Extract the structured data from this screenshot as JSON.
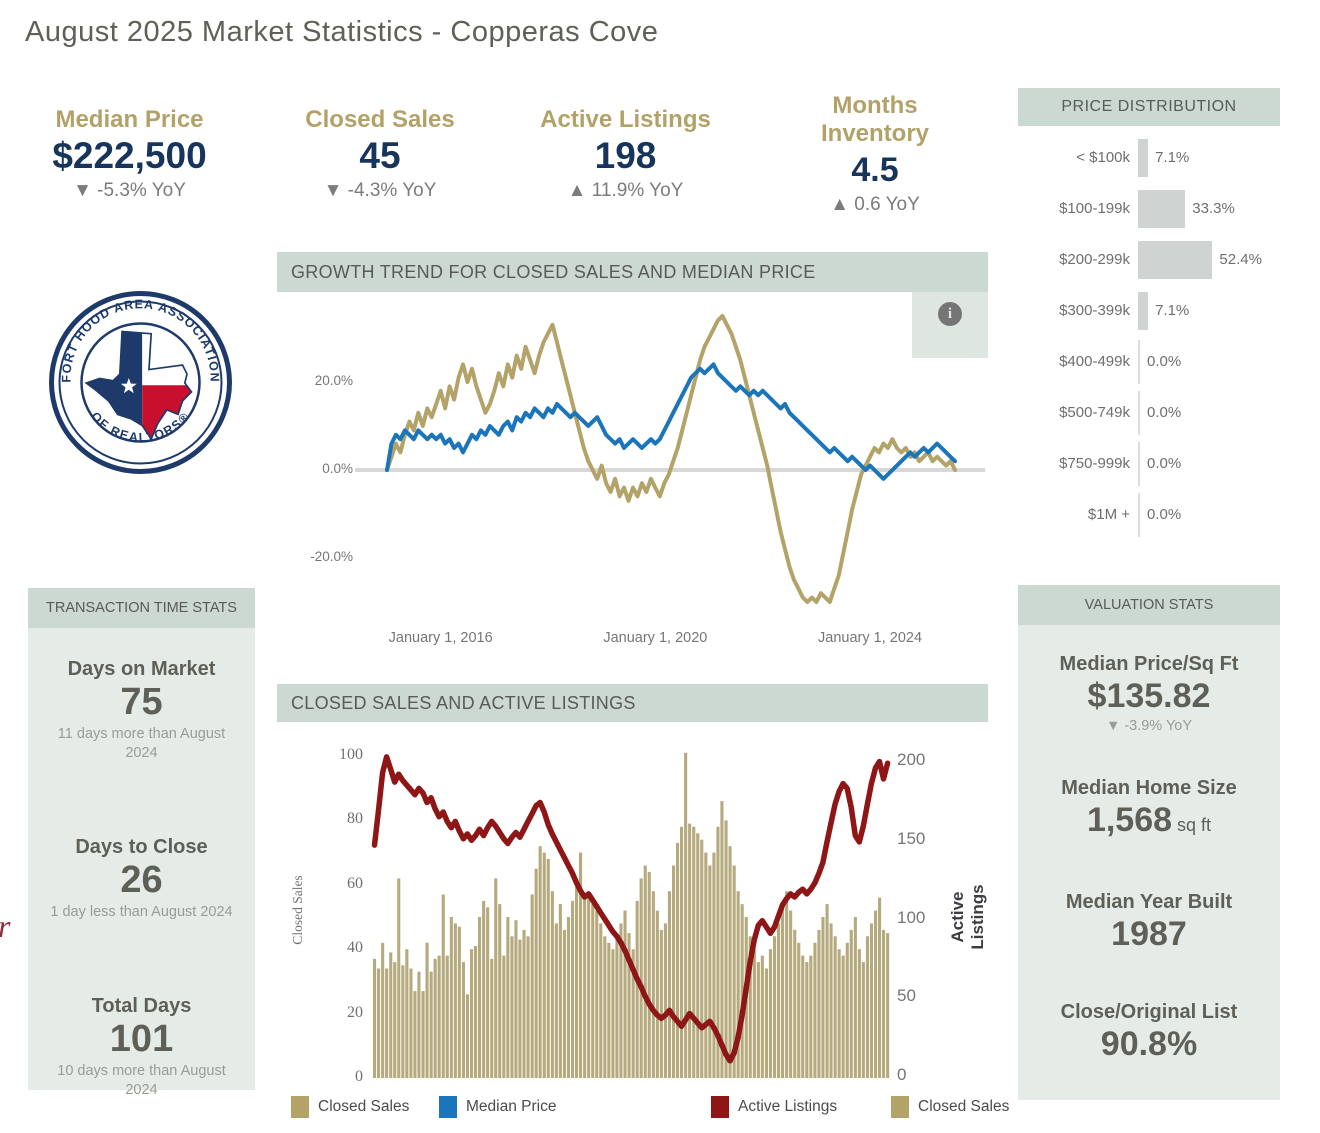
{
  "title": "August 2025 Market Statistics - Copperas Cove",
  "colors": {
    "gold": "#b2a269",
    "navy": "#17355c",
    "sage_header": "#ccd8d2",
    "panel": "#e5ece8",
    "tan_series": "#b3a369",
    "tan_bar": "#b5a97e",
    "blue_series": "#1a75bb",
    "red_series": "#8e1616",
    "gray_bar": "#cfd4d3",
    "zero_line": "#d8d8d8"
  },
  "kpis": [
    {
      "label": "Median Price",
      "value": "$222,500",
      "delta": "▼ -5.3% YoY"
    },
    {
      "label": "Closed Sales",
      "value": "45",
      "delta": "▼ -4.3% YoY"
    },
    {
      "label": "Active Listings",
      "value": "198",
      "delta": "▲ 11.9% YoY"
    },
    {
      "label": "Months Inventory",
      "value": "4.5",
      "delta": "▲ 0.6 YoY"
    }
  ],
  "price_distribution": {
    "header": "PRICE DISTRIBUTION",
    "rows": [
      {
        "label": "< $100k",
        "pct": "7.1%",
        "value": 7.1
      },
      {
        "label": "$100-199k",
        "pct": "33.3%",
        "value": 33.3
      },
      {
        "label": "$200-299k",
        "pct": "52.4%",
        "value": 52.4
      },
      {
        "label": "$300-399k",
        "pct": "7.1%",
        "value": 7.1
      },
      {
        "label": "$400-499k",
        "pct": "0.0%",
        "value": 0
      },
      {
        "label": "$500-749k",
        "pct": "0.0%",
        "value": 0
      },
      {
        "label": "$750-999k",
        "pct": "0.0%",
        "value": 0
      },
      {
        "label": "$1M +",
        "pct": "0.0%",
        "value": 0
      }
    ]
  },
  "logo": {
    "top_text": "FORT HOOD AREA ASSOCIATION",
    "bottom_text": "OF REALTORS®"
  },
  "growth_section": {
    "header": "GROWTH TREND FOR CLOSED SALES AND MEDIAN PRICE",
    "info_glyph": "i"
  },
  "sales_section": {
    "header": "CLOSED SALES AND ACTIVE LISTINGS",
    "left_axis": "Closed Sales",
    "right_axis": "Active Listings"
  },
  "legend": [
    {
      "label": "Closed Sales",
      "color": "#b3a369"
    },
    {
      "label": "Median Price",
      "color": "#1a75bb"
    },
    {
      "label": "Active Listings",
      "color": "#8e1616"
    },
    {
      "label": "Closed Sales",
      "color": "#b3a369"
    }
  ],
  "transaction_stats": {
    "header": "TRANSACTION TIME STATS",
    "items": [
      {
        "label": "Days on Market",
        "value": "75",
        "note": "11 days more than August 2024"
      },
      {
        "label": "Days to Close",
        "value": "26",
        "note": "1 day less than August 2024"
      },
      {
        "label": "Total Days",
        "value": "101",
        "note": "10 days more than August 2024"
      }
    ]
  },
  "valuation_stats": {
    "header": "VALUATION STATS",
    "items": [
      {
        "label": "Median Price/Sq Ft",
        "value": "$135.82",
        "suffix": "",
        "note": "▼ -3.9% YoY"
      },
      {
        "label": "Median Home Size",
        "value": "1,568",
        "suffix": " sq ft",
        "note": ""
      },
      {
        "label": "Median Year Built",
        "value": "1987",
        "suffix": "",
        "note": ""
      },
      {
        "label": "Close/Original List",
        "value": "90.8%",
        "suffix": "",
        "note": ""
      }
    ]
  },
  "fragment_text": "r",
  "chart_data": [
    {
      "type": "line",
      "title": "GROWTH TREND FOR CLOSED SALES AND MEDIAN PRICE",
      "x_start": "2015-01",
      "x_end": "2025-08",
      "xticks": [
        "January 1, 2016",
        "January 1, 2020",
        "January 1, 2024"
      ],
      "xtick_month_index": [
        12,
        60,
        108
      ],
      "yticks": [
        {
          "label": "20.0%",
          "value": 20
        },
        {
          "label": "0.0%",
          "value": 0
        },
        {
          "label": "-20.0%",
          "value": -20
        }
      ],
      "ylim": [
        -33,
        38
      ],
      "grid": "zero-line-only",
      "legend_position": "bottom",
      "series": [
        {
          "name": "Closed Sales",
          "color": "#b3a369",
          "unit": "% YoY growth",
          "values": [
            0,
            3,
            6,
            4,
            8,
            11,
            9,
            13,
            10,
            14,
            12,
            15,
            18,
            14,
            19,
            16,
            21,
            24,
            20,
            23,
            19,
            16,
            13,
            15,
            18,
            22,
            19,
            24,
            21,
            26,
            23,
            28,
            25,
            22,
            26,
            29,
            31,
            33,
            29,
            25,
            21,
            17,
            13,
            9,
            5,
            2,
            0,
            -2,
            1,
            -3,
            -5,
            -2,
            -6,
            -4,
            -7,
            -4,
            -6,
            -3,
            -5,
            -2,
            -4,
            -6,
            -3,
            -1,
            2,
            5,
            9,
            13,
            17,
            21,
            25,
            28,
            30,
            32,
            34,
            35,
            33,
            31,
            28,
            25,
            21,
            17,
            13,
            9,
            5,
            1,
            -4,
            -9,
            -14,
            -18,
            -22,
            -25,
            -27,
            -29,
            -30,
            -29,
            -30,
            -28,
            -29,
            -30,
            -27,
            -24,
            -19,
            -14,
            -9,
            -5,
            -1,
            1,
            3,
            5,
            4,
            6,
            5,
            7,
            5,
            4,
            5,
            3,
            4,
            2,
            3,
            4,
            2,
            3,
            2,
            1,
            2,
            0
          ]
        },
        {
          "name": "Median Price",
          "color": "#1a75bb",
          "unit": "% YoY growth",
          "values": [
            0,
            6,
            8,
            7,
            9,
            8,
            7,
            9,
            8,
            7,
            8,
            7,
            8,
            6,
            7,
            5,
            6,
            4,
            6,
            8,
            7,
            9,
            8,
            10,
            9,
            8,
            10,
            11,
            9,
            12,
            11,
            13,
            12,
            14,
            13,
            12,
            14,
            13,
            15,
            14,
            13,
            12,
            13,
            12,
            11,
            10,
            11,
            12,
            10,
            8,
            7,
            6,
            7,
            5,
            6,
            7,
            6,
            5,
            6,
            7,
            6,
            7,
            9,
            11,
            13,
            15,
            17,
            19,
            21,
            22,
            23,
            22,
            23,
            24,
            22,
            21,
            20,
            19,
            18,
            19,
            18,
            17,
            18,
            17,
            18,
            17,
            16,
            15,
            14,
            15,
            13,
            12,
            11,
            10,
            9,
            8,
            7,
            6,
            5,
            4,
            5,
            4,
            3,
            2,
            3,
            2,
            1,
            0,
            1,
            0,
            -1,
            -2,
            -1,
            0,
            1,
            2,
            3,
            4,
            3,
            4,
            5,
            4,
            5,
            6,
            5,
            4,
            3,
            2
          ]
        }
      ]
    },
    {
      "type": "bar",
      "title": "CLOSED SALES AND ACTIVE LISTINGS",
      "x_start": "2015-01",
      "x_end": "2025-08",
      "left_axis": {
        "label": "Closed Sales",
        "ticks": [
          0,
          20,
          40,
          60,
          80,
          100
        ],
        "ylim": [
          0,
          100
        ]
      },
      "right_axis": {
        "label": "Active Listings",
        "ticks": [
          0,
          50,
          100,
          150,
          200
        ],
        "ylim": [
          0,
          200
        ]
      },
      "bar_series": {
        "name": "Closed Sales",
        "color": "#b5a97e",
        "axis": "left",
        "values": [
          37,
          34,
          42,
          34,
          39,
          36,
          62,
          35,
          40,
          34,
          27,
          33,
          27,
          42,
          33,
          37,
          38,
          57,
          38,
          50,
          48,
          47,
          36,
          26,
          40,
          41,
          50,
          55,
          53,
          37,
          62,
          54,
          38,
          50,
          44,
          49,
          43,
          46,
          44,
          57,
          65,
          72,
          70,
          68,
          58,
          48,
          54,
          46,
          50,
          55,
          62,
          70,
          57,
          56,
          54,
          52,
          48,
          44,
          42,
          40,
          43,
          48,
          52,
          45,
          40,
          55,
          62,
          66,
          64,
          58,
          52,
          46,
          48,
          58,
          66,
          73,
          78,
          101,
          79,
          78,
          76,
          74,
          70,
          66,
          70,
          78,
          86,
          80,
          72,
          66,
          58,
          54,
          50,
          44,
          40,
          36,
          38,
          34,
          40,
          44,
          48,
          54,
          58,
          52,
          46,
          42,
          38,
          36,
          38,
          42,
          46,
          50,
          54,
          48,
          44,
          40,
          38,
          42,
          46,
          50,
          40,
          36,
          44,
          48,
          52,
          56,
          46,
          45
        ]
      },
      "line_series": {
        "name": "Active Listings",
        "color": "#8e1616",
        "axis": "right",
        "values": [
          146,
          168,
          192,
          202,
          194,
          186,
          191,
          187,
          184,
          181,
          178,
          182,
          179,
          173,
          176,
          169,
          164,
          167,
          161,
          157,
          161,
          155,
          150,
          153,
          149,
          152,
          156,
          152,
          157,
          161,
          158,
          154,
          150,
          147,
          151,
          154,
          151,
          156,
          161,
          166,
          171,
          173,
          167,
          159,
          153,
          148,
          143,
          138,
          133,
          128,
          122,
          117,
          113,
          115,
          111,
          107,
          103,
          99,
          95,
          91,
          88,
          84,
          79,
          73,
          67,
          61,
          56,
          50,
          45,
          41,
          38,
          36,
          38,
          41,
          37,
          34,
          31,
          35,
          39,
          36,
          33,
          30,
          32,
          34,
          30,
          25,
          19,
          13,
          9,
          14,
          24,
          38,
          55,
          72,
          86,
          95,
          98,
          94,
          90,
          94,
          101,
          108,
          112,
          115,
          113,
          116,
          118,
          115,
          118,
          122,
          128,
          135,
          148,
          160,
          172,
          180,
          185,
          182,
          170,
          152,
          148,
          158,
          172,
          185,
          195,
          199,
          188,
          198
        ]
      }
    }
  ]
}
